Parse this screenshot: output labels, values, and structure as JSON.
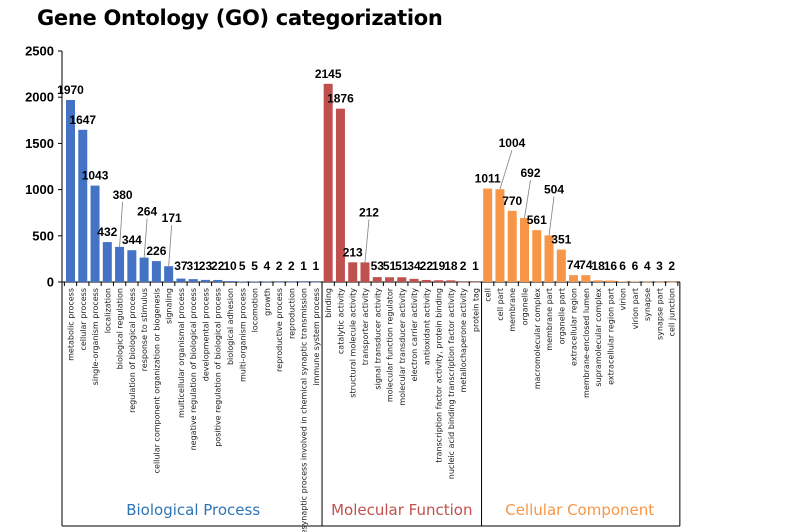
{
  "chart_data": {
    "type": "bar",
    "title": "Gene Ontology (GO) categorization",
    "xlabel": "",
    "ylabel": "",
    "ylim": [
      0,
      2500
    ],
    "yticks": [
      0,
      500,
      1000,
      1500,
      2000,
      2500
    ],
    "grid": false,
    "series": [
      {
        "name": "Biological Process",
        "color": "#4472c4",
        "label_color": "#2e75b6",
        "categories": [
          "metabolic process",
          "cellular process",
          "single-organism process",
          "localization",
          "biological regulation",
          "regulation of biological process",
          "response to stimulus",
          "cellular component organization or biogenesis",
          "signaling",
          "multicellular organismal process",
          "negative regulation of biological process",
          "developmental process",
          "positive regulation of biological process",
          "biological adhesion",
          "multi-organism process",
          "locomotion",
          "growth",
          "reproductive process",
          "reproduction",
          "presynaptic process involved in chemical synaptic transmission",
          "immune system process"
        ],
        "values": [
          1970,
          1647,
          1043,
          432,
          380,
          344,
          264,
          226,
          171,
          37,
          31,
          23,
          22,
          10,
          5,
          5,
          4,
          2,
          2,
          1,
          1
        ],
        "value_labels": [
          "1970",
          "1647",
          "1043",
          "432",
          "380",
          "344",
          "264",
          "226",
          "171",
          "37",
          "31",
          "23",
          "22",
          "10",
          "5",
          "5",
          "4",
          "2",
          "2",
          "1",
          "1"
        ]
      },
      {
        "name": "Molecular Function",
        "color": "#c0504d",
        "label_color": "#c0504d",
        "categories": [
          "binding",
          "catalytic activity",
          "structural molecule activity",
          "transporter activity",
          "signal transducer activity",
          "molecular function regulator",
          "molecular transducer activity",
          "electron carrier activity",
          "antioxidant activity",
          "transcription factor activity, protein binding",
          "nucleic acid binding transcription factor activity",
          "metallochaperone activity",
          "protein tag"
        ],
        "values": [
          2145,
          1876,
          213,
          212,
          53,
          51,
          51,
          34,
          22,
          19,
          18,
          2,
          1
        ],
        "value_labels": [
          "2145",
          "1876",
          "213",
          "212",
          "53",
          "51",
          "51",
          "34",
          "22",
          "19",
          "18",
          "2",
          "1"
        ]
      },
      {
        "name": "Cellular Component",
        "color": "#f79646",
        "label_color": "#f79646",
        "categories": [
          "cell",
          "cell part",
          "membrane",
          "organelle",
          "macromolecular complex",
          "membrane part",
          "organelle part",
          "extracellular region",
          "membrane-enclosed lumen",
          "supramolecular complex",
          "extracellular region part",
          "virion",
          "virion part",
          "synapse",
          "synapse part",
          "cell junction"
        ],
        "values": [
          1011,
          1004,
          770,
          692,
          561,
          504,
          351,
          74,
          74,
          18,
          16,
          6,
          6,
          4,
          3,
          2
        ],
        "value_labels": [
          "1011",
          "1004",
          "770",
          "692",
          "561",
          "504",
          "351",
          "74",
          "74",
          "18",
          "16",
          "6",
          "6",
          "4",
          "3",
          "2"
        ]
      }
    ]
  }
}
